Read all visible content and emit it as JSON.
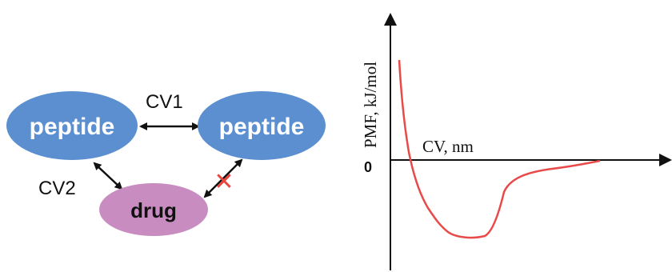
{
  "diagram": {
    "nodes": {
      "peptide_left": {
        "label": "peptide",
        "color": "#5b8fd0"
      },
      "peptide_right": {
        "label": "peptide",
        "color": "#5b8fd0"
      },
      "drug": {
        "label": "drug",
        "color": "#c88cc0"
      }
    },
    "edges": {
      "cv1": {
        "label": "CV1"
      },
      "cv2": {
        "label": "CV2"
      },
      "blocked": {
        "marker": "✕",
        "marker_color": "#e8463c"
      }
    }
  },
  "plot": {
    "ylabel": "PMF, kJ/mol",
    "xlabel": "CV, nm",
    "zero_label": "0",
    "curve_color": "#e84a4a"
  }
}
